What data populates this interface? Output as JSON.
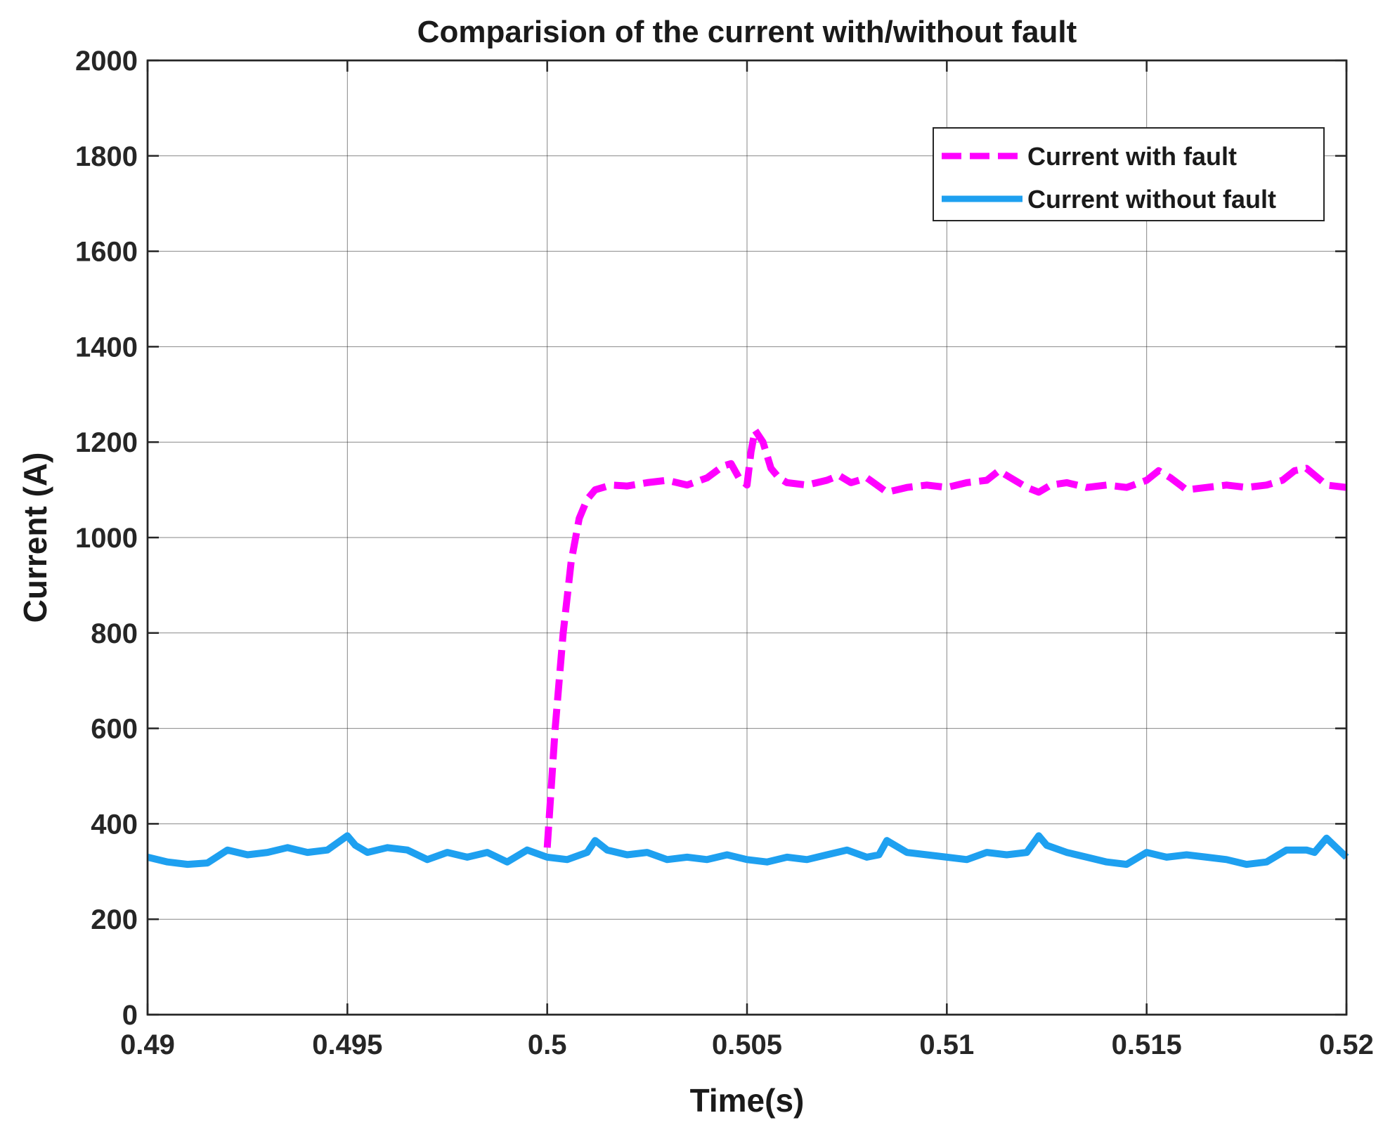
{
  "chart_data": {
    "type": "line",
    "title": "Comparision of the current with/without fault",
    "xlabel": "Time(s)",
    "ylabel": "Current (A)",
    "xlim": [
      0.49,
      0.52
    ],
    "ylim": [
      0,
      2000
    ],
    "x_ticks": [
      "0.49",
      "0.495",
      "0.5",
      "0.505",
      "0.51",
      "0.515",
      "0.52"
    ],
    "y_ticks": [
      "0",
      "200",
      "400",
      "600",
      "800",
      "1000",
      "1200",
      "1400",
      "1600",
      "1800",
      "2000"
    ],
    "grid": true,
    "legend_position": "top-right",
    "series": [
      {
        "name": "Current with fault",
        "color": "#ff00ff",
        "line_style": "dashed",
        "x": [
          0.5,
          0.5002,
          0.5004,
          0.5006,
          0.5008,
          0.501,
          0.5012,
          0.5016,
          0.502,
          0.5025,
          0.503,
          0.5035,
          0.504,
          0.5044,
          0.5046,
          0.5048,
          0.505,
          0.5051,
          0.5052,
          0.5054,
          0.5056,
          0.5058,
          0.506,
          0.5065,
          0.507,
          0.5073,
          0.5076,
          0.508,
          0.5085,
          0.509,
          0.5095,
          0.51,
          0.5105,
          0.511,
          0.5113,
          0.5116,
          0.512,
          0.5123,
          0.5126,
          0.513,
          0.5135,
          0.514,
          0.5145,
          0.515,
          0.5153,
          0.5156,
          0.516,
          0.5165,
          0.517,
          0.5175,
          0.518,
          0.5184,
          0.5187,
          0.519,
          0.5195,
          0.52
        ],
        "y": [
          350,
          600,
          800,
          950,
          1040,
          1080,
          1100,
          1110,
          1108,
          1115,
          1120,
          1110,
          1125,
          1150,
          1155,
          1125,
          1110,
          1180,
          1225,
          1200,
          1145,
          1125,
          1115,
          1110,
          1120,
          1130,
          1115,
          1125,
          1095,
          1105,
          1110,
          1105,
          1115,
          1120,
          1140,
          1125,
          1105,
          1095,
          1110,
          1115,
          1105,
          1110,
          1105,
          1120,
          1140,
          1125,
          1100,
          1105,
          1110,
          1105,
          1110,
          1120,
          1140,
          1145,
          1110,
          1105
        ]
      },
      {
        "name": "Current without fault",
        "color": "#1ea0f0",
        "line_style": "solid",
        "x": [
          0.49,
          0.4905,
          0.491,
          0.4915,
          0.492,
          0.4925,
          0.493,
          0.4935,
          0.494,
          0.4945,
          0.495,
          0.4952,
          0.4955,
          0.496,
          0.4965,
          0.497,
          0.4975,
          0.498,
          0.4985,
          0.499,
          0.4995,
          0.5,
          0.5005,
          0.501,
          0.5012,
          0.5015,
          0.502,
          0.5025,
          0.503,
          0.5035,
          0.504,
          0.5045,
          0.505,
          0.5055,
          0.506,
          0.5065,
          0.507,
          0.5075,
          0.508,
          0.5083,
          0.5085,
          0.509,
          0.5095,
          0.51,
          0.5105,
          0.511,
          0.5115,
          0.512,
          0.5123,
          0.5125,
          0.513,
          0.5135,
          0.514,
          0.5145,
          0.515,
          0.5155,
          0.516,
          0.5165,
          0.517,
          0.5175,
          0.518,
          0.5185,
          0.519,
          0.5192,
          0.5195,
          0.52
        ],
        "y": [
          330,
          320,
          315,
          318,
          345,
          335,
          340,
          350,
          340,
          345,
          375,
          355,
          340,
          350,
          345,
          325,
          340,
          330,
          340,
          320,
          345,
          330,
          325,
          340,
          365,
          345,
          335,
          340,
          325,
          330,
          325,
          335,
          325,
          320,
          330,
          325,
          335,
          345,
          330,
          335,
          365,
          340,
          335,
          330,
          325,
          340,
          335,
          340,
          375,
          355,
          340,
          330,
          320,
          315,
          340,
          330,
          335,
          330,
          325,
          315,
          320,
          345,
          345,
          340,
          370,
          330
        ]
      }
    ]
  }
}
